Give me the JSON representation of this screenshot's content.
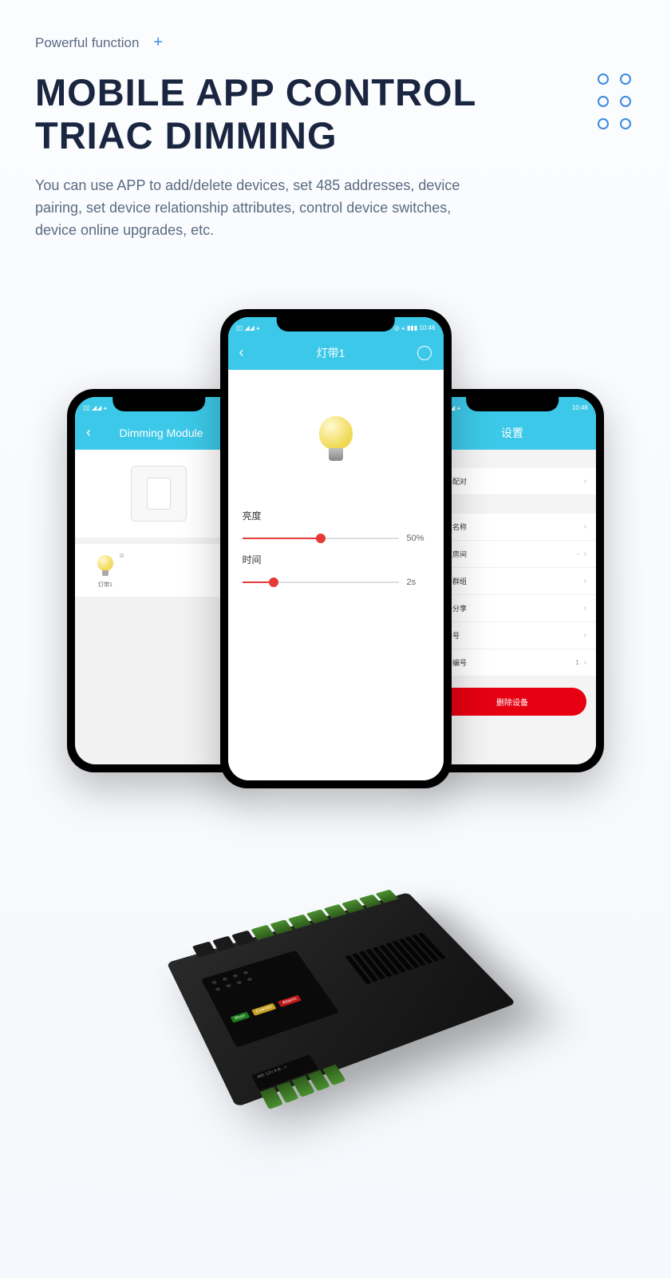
{
  "header": {
    "overline": "Powerful function",
    "plus": "+",
    "title_line1": "MOBILE APP CONTROL",
    "title_line2": "TRIAC DIMMING",
    "description": "You can use APP to add/delete devices, set 485 addresses, device pairing, set device relationship attributes, control device switches, device online upgrades, etc."
  },
  "center_phone": {
    "status_time": "10:46",
    "status_icons": "◎ ⚹ ▮▮▮",
    "title": "灯带1",
    "back": "‹",
    "sliders": [
      {
        "label": "亮度",
        "value_text": "50%",
        "percent": 50
      },
      {
        "label": "时间",
        "value_text": "2s",
        "percent": 20
      }
    ]
  },
  "left_phone": {
    "status_time": "",
    "title": "Dimming Module",
    "back": "‹",
    "device_name": "灯带1",
    "tick": "⊘"
  },
  "right_phone": {
    "status_time": "10:46",
    "title": "设置",
    "sections": [
      {
        "header": "设置",
        "rows": [
          {
            "label": "设备配对",
            "value": "",
            "chev": "›"
          }
        ]
      },
      {
        "header": "设置",
        "rows": [
          {
            "label": "修改名称",
            "value": "",
            "chev": "›"
          },
          {
            "label": "所在房间",
            "value": "-",
            "chev": "›"
          },
          {
            "label": "设备群组",
            "value": "",
            "chev": "›"
          },
          {
            "label": "设备分享",
            "value": "",
            "chev": "›"
          },
          {
            "label": "版本号",
            "value": "",
            "chev": "›"
          },
          {
            "label": "设备编号",
            "value": "1",
            "chev": "›"
          }
        ]
      }
    ],
    "delete": "删除设备"
  },
  "hardware": {
    "labels": {
      "run": "Run",
      "comm": "Comm",
      "alarm": "Alarm"
    },
    "bottom_labels": "485  12V\nA B - +"
  },
  "colors": {
    "accent": "#3cc8e8",
    "title": "#1a2540",
    "text": "#5a6b82",
    "slider": "#e53935",
    "delete": "#e60012",
    "circle": "#3b8be0"
  }
}
